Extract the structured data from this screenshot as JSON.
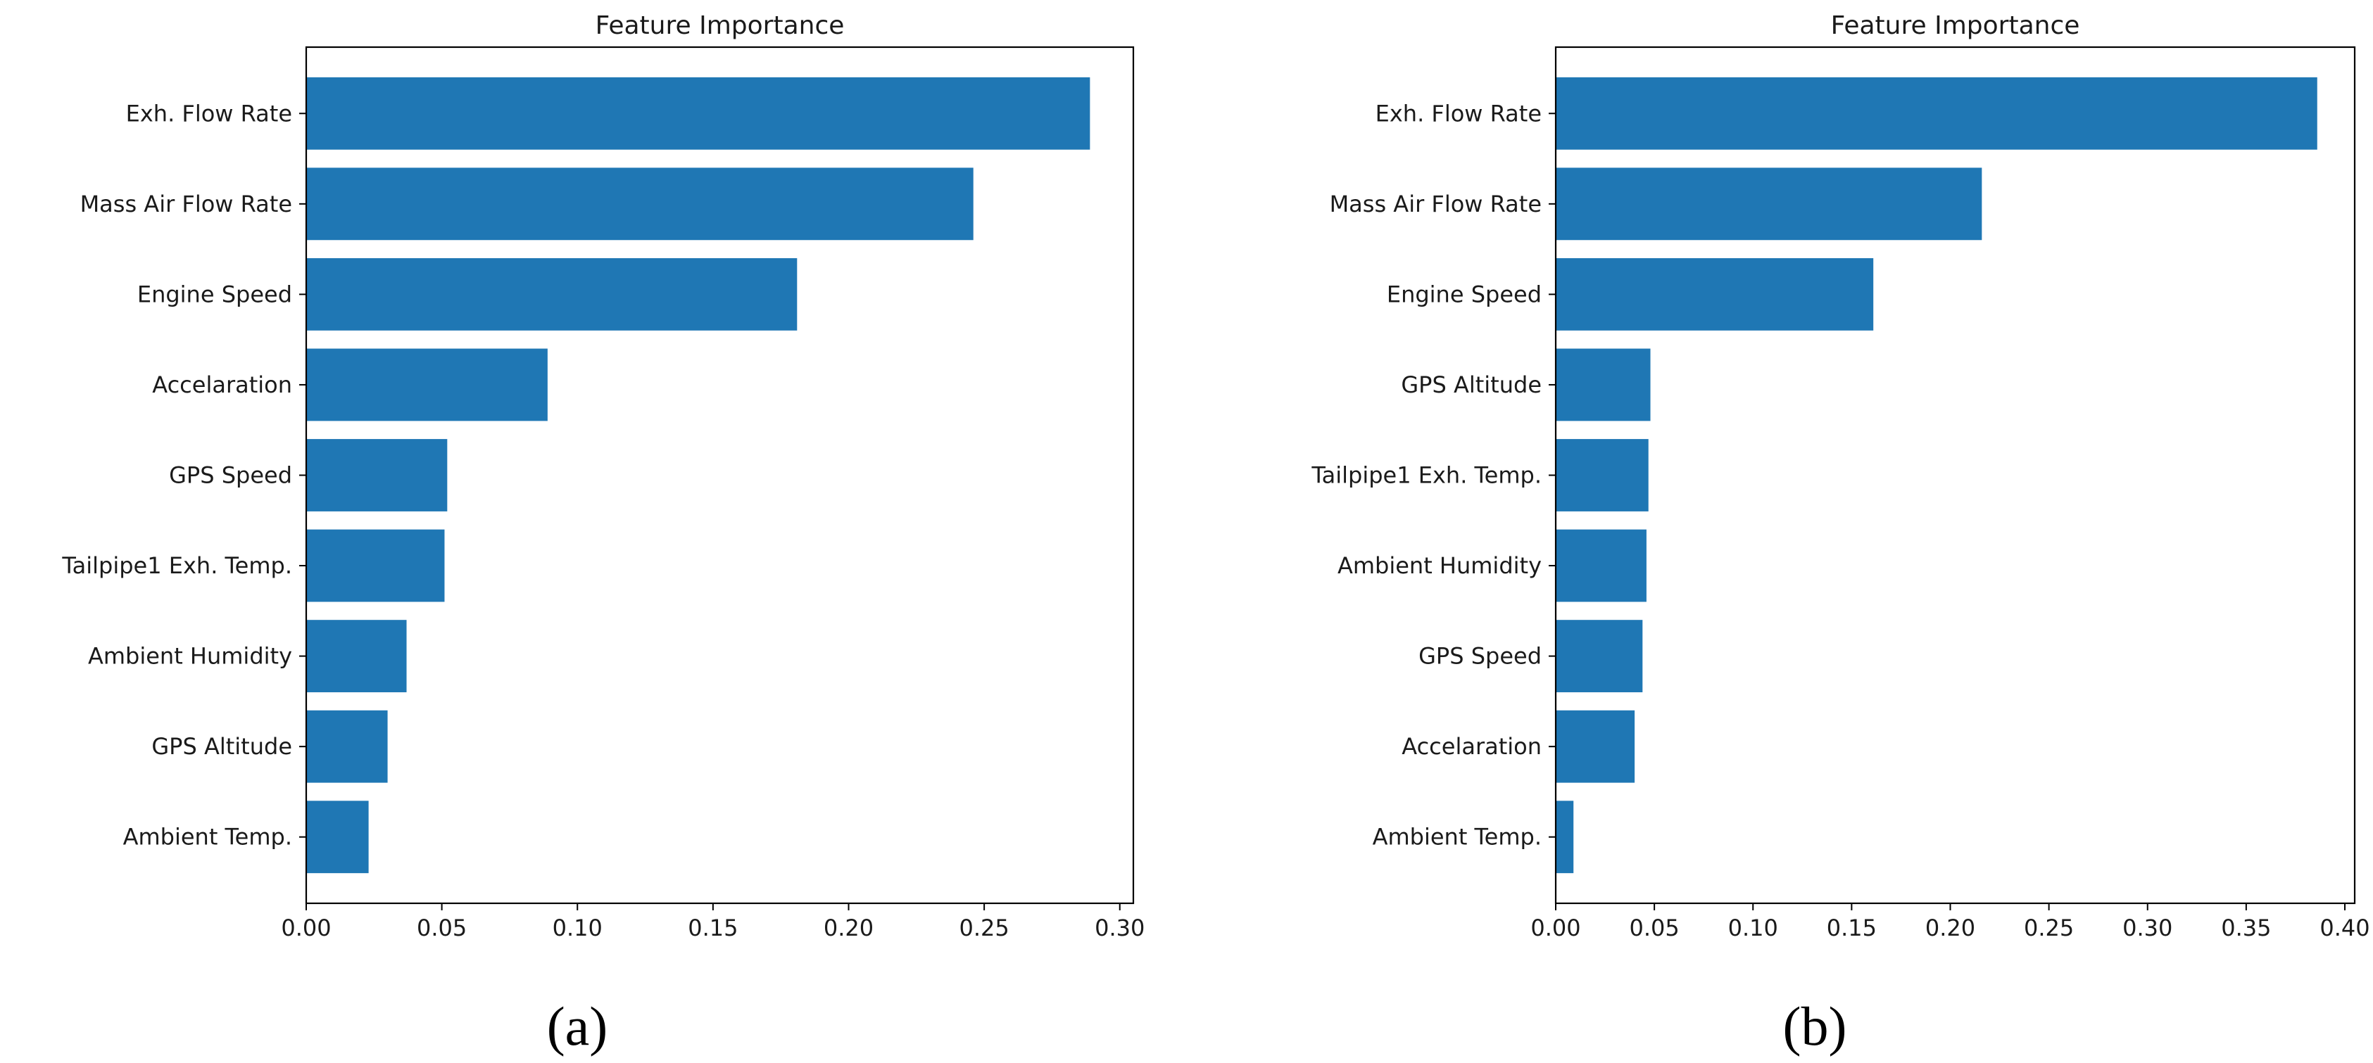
{
  "colors": {
    "bar": "#1f77b4",
    "axis": "#000000",
    "text": "#1a1a1a",
    "background": "#ffffff"
  },
  "chart_data": [
    {
      "type": "bar",
      "orientation": "horizontal",
      "panel_label": "(a)",
      "title": "Feature Importance",
      "xlabel": "",
      "ylabel": "",
      "xlim": [
        0,
        0.305
      ],
      "xticks": [
        "0.00",
        "0.05",
        "0.10",
        "0.15",
        "0.20",
        "0.25",
        "0.30"
      ],
      "xtick_values": [
        0,
        0.05,
        0.1,
        0.15,
        0.2,
        0.25,
        0.3
      ],
      "categories": [
        "Exh. Flow Rate",
        "Mass Air Flow Rate",
        "Engine Speed",
        "Accelaration",
        "GPS Speed",
        "Tailpipe1 Exh. Temp.",
        "Ambient Humidity",
        "GPS Altitude",
        "Ambient Temp."
      ],
      "values": [
        0.289,
        0.246,
        0.181,
        0.089,
        0.052,
        0.051,
        0.037,
        0.03,
        0.023
      ]
    },
    {
      "type": "bar",
      "orientation": "horizontal",
      "panel_label": "(b)",
      "title": "Feature Importance",
      "xlabel": "",
      "ylabel": "",
      "xlim": [
        0,
        0.405
      ],
      "xticks": [
        "0.00",
        "0.05",
        "0.10",
        "0.15",
        "0.20",
        "0.25",
        "0.30",
        "0.35",
        "0.40"
      ],
      "xtick_values": [
        0,
        0.05,
        0.1,
        0.15,
        0.2,
        0.25,
        0.3,
        0.35,
        0.4
      ],
      "categories": [
        "Exh. Flow Rate",
        "Mass Air Flow Rate",
        "Engine Speed",
        "GPS Altitude",
        "Tailpipe1 Exh. Temp.",
        "Ambient Humidity",
        "GPS Speed",
        "Accelaration",
        "Ambient Temp."
      ],
      "values": [
        0.386,
        0.216,
        0.161,
        0.048,
        0.047,
        0.046,
        0.044,
        0.04,
        0.009
      ]
    }
  ]
}
